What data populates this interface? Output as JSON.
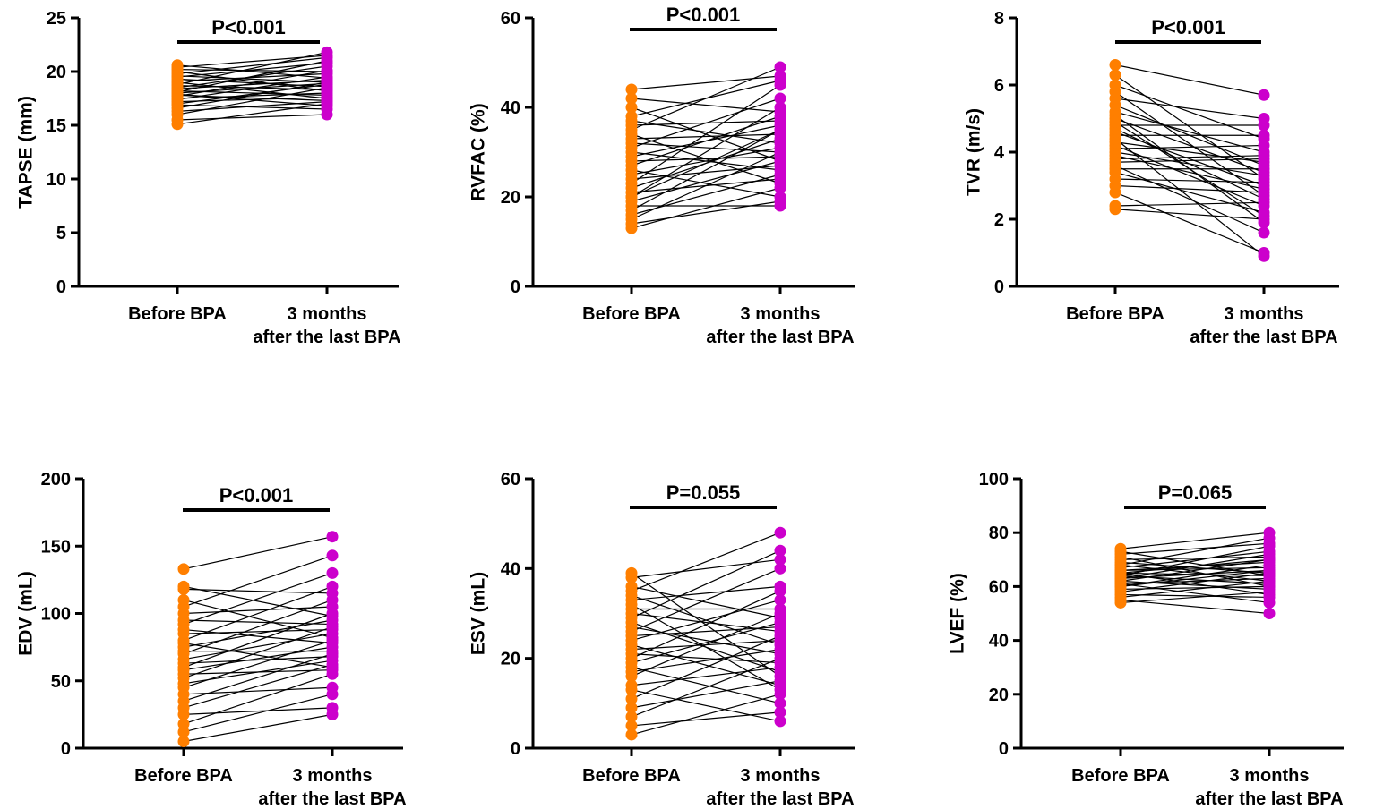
{
  "colors": {
    "before": "#FF7F00",
    "after": "#CC00CC",
    "line": "#000000"
  },
  "chart_data": [
    {
      "type": "line",
      "ylabel": "TAPSE (mm)",
      "ylim": [
        0,
        25
      ],
      "yticks": [
        "0",
        "5",
        "10",
        "15",
        "20",
        "25"
      ],
      "categories": [
        "Before BPA",
        "3 months",
        "after the last BPA"
      ],
      "pvalue": "P<0.001",
      "before": [
        15.1,
        15.5,
        16.0,
        16.3,
        16.6,
        16.9,
        17.0,
        17.2,
        17.4,
        17.5,
        17.7,
        17.8,
        18.0,
        18.1,
        18.2,
        18.4,
        18.5,
        18.7,
        18.8,
        19.0,
        19.1,
        19.3,
        19.5,
        19.6,
        19.8,
        20.0,
        20.2,
        20.4,
        20.6,
        17.9
      ],
      "after": [
        17.0,
        16.0,
        18.5,
        17.2,
        19.0,
        16.5,
        18.8,
        17.6,
        19.5,
        18.0,
        20.1,
        17.3,
        18.9,
        21.0,
        17.8,
        19.2,
        20.5,
        18.3,
        21.8,
        17.5,
        19.8,
        18.6,
        20.8,
        19.0,
        21.3,
        18.2,
        20.0,
        21.5,
        19.4,
        16.8
      ]
    },
    {
      "type": "line",
      "ylabel": "RVFAC (%)",
      "ylim": [
        0,
        60
      ],
      "yticks": [
        "0",
        "20",
        "40",
        "60"
      ],
      "categories": [
        "Before BPA",
        "3 months",
        "after the last BPA"
      ],
      "pvalue": "P<0.001",
      "before": [
        13,
        14,
        15,
        16,
        17,
        18,
        19,
        20,
        21,
        22,
        23,
        24,
        25,
        26,
        27,
        28,
        29,
        30,
        31,
        32,
        33,
        34,
        35,
        36,
        37,
        38,
        40,
        42,
        44,
        20
      ],
      "after": [
        22,
        19,
        30,
        25,
        35,
        18,
        28,
        40,
        24,
        33,
        45,
        27,
        31,
        20,
        38,
        29,
        36,
        26,
        42,
        30,
        34,
        23,
        49,
        37,
        32,
        46,
        28,
        39,
        47,
        35
      ]
    },
    {
      "type": "line",
      "ylabel": "TVR (m/s)",
      "ylim": [
        0,
        8
      ],
      "yticks": [
        "0",
        "2",
        "4",
        "6",
        "8"
      ],
      "categories": [
        "Before BPA",
        "3 months",
        "after the last BPA"
      ],
      "pvalue": "P<0.001",
      "before": [
        2.3,
        2.4,
        2.8,
        3.0,
        3.2,
        3.4,
        3.5,
        3.6,
        3.8,
        3.9,
        4.0,
        4.1,
        4.2,
        4.3,
        4.4,
        4.5,
        4.6,
        4.7,
        4.8,
        5.0,
        5.1,
        5.2,
        5.4,
        5.6,
        5.8,
        6.0,
        6.3,
        6.6,
        3.7,
        4.9
      ],
      "after": [
        2.0,
        2.5,
        1.0,
        2.8,
        3.1,
        2.2,
        3.5,
        1.6,
        3.9,
        2.9,
        3.3,
        4.2,
        2.4,
        3.7,
        0.9,
        4.5,
        3.0,
        2.6,
        4.8,
        3.4,
        1.9,
        4.0,
        3.6,
        5.0,
        2.7,
        4.4,
        3.2,
        5.7,
        3.8,
        2.1
      ]
    },
    {
      "type": "line",
      "ylabel": "EDV (mL)",
      "ylim": [
        0,
        200
      ],
      "yticks": [
        "0",
        "50",
        "100",
        "150",
        "200"
      ],
      "categories": [
        "Before BPA",
        "3 months",
        "after the last BPA"
      ],
      "pvalue": "P<0.001",
      "before": [
        5,
        12,
        18,
        25,
        30,
        35,
        40,
        45,
        48,
        52,
        55,
        58,
        60,
        63,
        66,
        70,
        72,
        75,
        78,
        80,
        85,
        88,
        92,
        95,
        100,
        105,
        110,
        118,
        120,
        133
      ],
      "after": [
        25,
        40,
        55,
        30,
        62,
        70,
        45,
        80,
        65,
        90,
        58,
        75,
        100,
        68,
        85,
        110,
        72,
        95,
        60,
        120,
        88,
        78,
        130,
        92,
        105,
        143,
        82,
        115,
        98,
        157
      ]
    },
    {
      "type": "line",
      "ylabel": "ESV (mL)",
      "ylim": [
        0,
        60
      ],
      "yticks": [
        "0",
        "20",
        "40",
        "60"
      ],
      "categories": [
        "Before BPA",
        "3 months",
        "after the last BPA"
      ],
      "pvalue": "P=0.055",
      "before": [
        3,
        5,
        7,
        9,
        11,
        13,
        14,
        16,
        17,
        18,
        19,
        20,
        21,
        22,
        23,
        24,
        25,
        26,
        27,
        28,
        29,
        30,
        31,
        32,
        33,
        34,
        35,
        36,
        38,
        39
      ],
      "after": [
        12,
        8,
        20,
        15,
        25,
        6,
        18,
        30,
        22,
        10,
        28,
        35,
        19,
        24,
        14,
        33,
        27,
        40,
        21,
        17,
        44,
        26,
        31,
        13,
        36,
        23,
        48,
        29,
        42,
        16
      ]
    },
    {
      "type": "line",
      "ylabel": "LVEF (%)",
      "ylim": [
        0,
        100
      ],
      "yticks": [
        "0",
        "20",
        "40",
        "60",
        "80",
        "100"
      ],
      "categories": [
        "Before BPA",
        "3 months",
        "after the last BPA"
      ],
      "pvalue": "P=0.065",
      "before": [
        54,
        55,
        56,
        57,
        58,
        59,
        60,
        61,
        61,
        62,
        62,
        63,
        63,
        64,
        64,
        65,
        65,
        66,
        66,
        67,
        68,
        68,
        69,
        70,
        71,
        72,
        73,
        74,
        60,
        65
      ],
      "after": [
        58,
        50,
        62,
        56,
        65,
        60,
        68,
        54,
        63,
        70,
        59,
        66,
        72,
        61,
        75,
        64,
        57,
        69,
        67,
        73,
        62,
        78,
        65,
        71,
        60,
        76,
        64,
        80,
        66,
        70
      ]
    }
  ]
}
